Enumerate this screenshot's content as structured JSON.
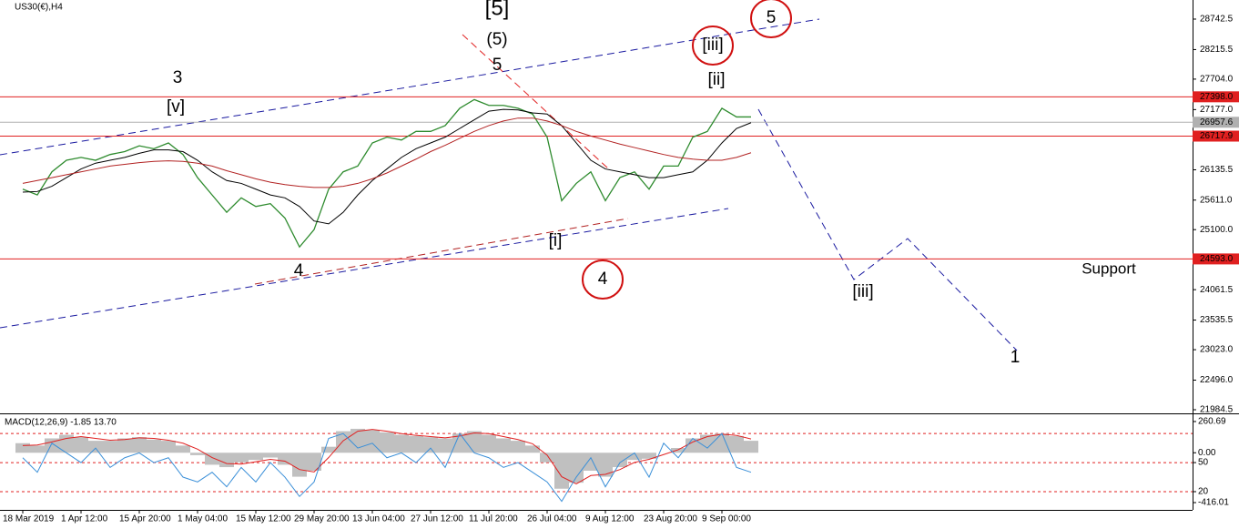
{
  "chart_data": [
    {
      "type": "line",
      "title": "US30(€),H4",
      "categories": [
        "18 Mar 2019",
        null,
        null,
        null,
        "1 Apr 12:00",
        null,
        null,
        null,
        "15 Apr 20:00",
        null,
        null,
        null,
        "1 May 04:00",
        null,
        null,
        null,
        "15 May 12:00",
        null,
        null,
        null,
        "29 May 20:00",
        null,
        null,
        null,
        "13 Jun 04:00",
        null,
        null,
        null,
        "27 Jun 12:00",
        null,
        null,
        null,
        "11 Jul 20:00",
        null,
        null,
        null,
        "26 Jul 04:00",
        null,
        null,
        null,
        "9 Aug 12:00",
        null,
        null,
        null,
        "23 Aug 20:00",
        null,
        null,
        null,
        "9 Sep 00:00",
        null,
        null
      ],
      "series": [
        {
          "color": "#2e8b2e",
          "values": [
            25800,
            25700,
            26100,
            26300,
            26350,
            26300,
            26400,
            26450,
            26550,
            26500,
            26600,
            26400,
            26000,
            25700,
            25400,
            25650,
            25500,
            25550,
            25300,
            24800,
            25100,
            25800,
            26100,
            26200,
            26600,
            26700,
            26650,
            26800,
            26800,
            26900,
            27200,
            27350,
            27250,
            27250,
            27200,
            27100,
            26700,
            25600,
            25900,
            26100,
            25600,
            26000,
            26100,
            25800,
            26200,
            26200,
            26700,
            26800,
            27200,
            27050,
            27050
          ]
        },
        {
          "color": "#000000",
          "values": [
            25750,
            25760,
            25850,
            26000,
            26150,
            26250,
            26300,
            26350,
            26420,
            26480,
            26480,
            26450,
            26300,
            26100,
            25950,
            25900,
            25800,
            25700,
            25650,
            25500,
            25250,
            25200,
            25400,
            25700,
            25950,
            26150,
            26350,
            26500,
            26600,
            26700,
            26850,
            27000,
            27150,
            27180,
            27170,
            27120,
            27100,
            26900,
            26600,
            26300,
            26150,
            26100,
            26050,
            26000,
            26000,
            26050,
            26100,
            26300,
            26600,
            26850,
            26950
          ]
        },
        {
          "color": "#b22222",
          "values": [
            25900,
            25950,
            26000,
            26050,
            26100,
            26150,
            26200,
            26230,
            26260,
            26280,
            26290,
            26280,
            26250,
            26200,
            26120,
            26050,
            25980,
            25920,
            25880,
            25850,
            25830,
            25830,
            25850,
            25900,
            25980,
            26080,
            26200,
            26320,
            26450,
            26560,
            26680,
            26800,
            26900,
            26980,
            27030,
            27030,
            26980,
            26900,
            26800,
            26720,
            26650,
            26580,
            26520,
            26460,
            26400,
            26350,
            26320,
            26300,
            26300,
            26350,
            26430
          ]
        }
      ],
      "ylim": [
        21937,
        29073
      ],
      "yticks": [
        28742.5,
        28215.5,
        {
          "value": 27704,
          "label": "27704.0"
        },
        {
          "value": 27177,
          "label": "27177.0"
        },
        26135.5,
        {
          "value": 25611,
          "label": "25611.0"
        },
        {
          "value": 25100,
          "label": "25100.0"
        },
        24061.5,
        23535.5,
        {
          "value": 23023,
          "label": "23023.0"
        },
        {
          "value": 22496,
          "label": "22496.0"
        },
        21984.5
      ],
      "hlines": [
        {
          "value": 27398,
          "label": "27398.0",
          "color": "#e02020"
        },
        {
          "value": 26957.6,
          "label": "26957.6",
          "color": "#b0b0b0"
        },
        {
          "value": 26717.9,
          "label": "26717.9",
          "color": "#e02020"
        },
        {
          "value": 24593,
          "label": "24593.0",
          "color": "#e02020"
        }
      ],
      "annotations": [
        {
          "text": "[5]",
          "color": "#000000"
        },
        {
          "text": "(5)",
          "color": "#e02020"
        },
        {
          "text": "5",
          "color": "#1a1aa0"
        },
        {
          "text": "3",
          "color": "#1a1aa0"
        },
        {
          "text": "[v]",
          "color": "#2e8b2e"
        },
        {
          "text": "4",
          "color": "#1a1aa0"
        },
        {
          "text": "[i]",
          "color": "#2e8b2e"
        },
        {
          "text": "4",
          "color": "#1a1aa0",
          "circled": true
        },
        {
          "text": "[ii]",
          "color": "#2e8b2e"
        },
        {
          "text": "[iii]",
          "color": "#2e8b2e",
          "circled": true
        },
        {
          "text": "5",
          "color": "#1a1aa0",
          "circled": true
        },
        {
          "text": "[iii]",
          "color": "#2e8b2e"
        },
        {
          "text": "1",
          "color": "#1a1aa0"
        },
        {
          "text": "Support",
          "color": "#e02020"
        }
      ]
    },
    {
      "type": "macd",
      "title": "MACD(12,26,9) -1.85 13.70",
      "histogram": [
        80,
        60,
        120,
        150,
        130,
        100,
        100,
        120,
        130,
        110,
        100,
        60,
        -20,
        -100,
        -120,
        -80,
        -60,
        -40,
        -100,
        -200,
        -150,
        50,
        180,
        200,
        190,
        170,
        150,
        140,
        130,
        120,
        160,
        180,
        150,
        120,
        100,
        60,
        -80,
        -300,
        -250,
        -150,
        -200,
        -120,
        -60,
        -50,
        0,
        40,
        120,
        150,
        160,
        140,
        100
      ],
      "series": [
        {
          "color": "#e02020",
          "values": [
            60,
            65,
            90,
            120,
            135,
            120,
            105,
            110,
            125,
            120,
            105,
            80,
            30,
            -40,
            -90,
            -95,
            -75,
            -55,
            -70,
            -140,
            -160,
            -40,
            100,
            180,
            195,
            180,
            160,
            145,
            135,
            125,
            140,
            165,
            160,
            135,
            110,
            75,
            -20,
            -200,
            -260,
            -190,
            -180,
            -140,
            -80,
            -55,
            -15,
            25,
            90,
            135,
            155,
            145,
            115
          ]
        },
        {
          "color": "#3a8fd8",
          "axis": "y2",
          "values": [
            55,
            40,
            70,
            60,
            50,
            65,
            45,
            55,
            60,
            50,
            55,
            35,
            30,
            40,
            25,
            45,
            30,
            50,
            35,
            15,
            30,
            75,
            80,
            65,
            70,
            55,
            60,
            50,
            65,
            45,
            80,
            60,
            55,
            45,
            50,
            40,
            30,
            10,
            35,
            55,
            25,
            50,
            60,
            35,
            70,
            55,
            75,
            65,
            80,
            45,
            40
          ]
        }
      ],
      "histogram_color": "#c0c0c0",
      "ylim": [
        -454,
        306
      ],
      "yticks": [
        260.69,
        {
          "value": 0,
          "label": "0.00"
        },
        -416.01
      ],
      "y2lim": [
        4,
        98
      ],
      "y2ticks": [
        50,
        20
      ],
      "y2levels": [
        80,
        50,
        20
      ],
      "level_color": "#e02020"
    }
  ]
}
